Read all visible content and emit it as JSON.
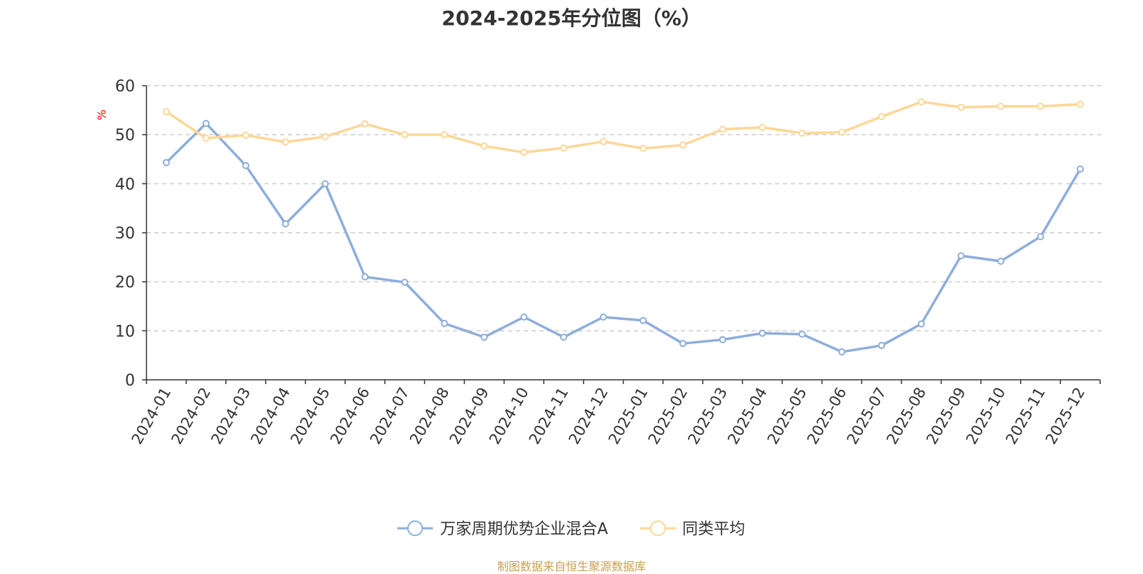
{
  "chart_data": {
    "type": "line",
    "title": "2024-2025年分位图（%）",
    "xlabel": "",
    "ylabel": "%",
    "ylim": [
      0,
      60
    ],
    "yticks": [
      0,
      10,
      20,
      30,
      40,
      50,
      60
    ],
    "grid": true,
    "legend_position": "bottom-center",
    "categories": [
      "2024-01",
      "2024-02",
      "2024-03",
      "2024-04",
      "2024-05",
      "2024-06",
      "2024-07",
      "2024-08",
      "2024-09",
      "2024-10",
      "2024-11",
      "2024-12",
      "2025-01",
      "2025-02",
      "2025-03",
      "2025-04",
      "2025-05",
      "2025-06",
      "2025-07",
      "2025-08",
      "2025-09",
      "2025-10",
      "2025-11",
      "2025-12"
    ],
    "series": [
      {
        "name": "万家周期优势企业混合A",
        "color": "#8eaedb",
        "values": [
          44.3,
          52.3,
          43.7,
          31.8,
          40.0,
          21.0,
          19.9,
          11.5,
          8.7,
          12.8,
          8.7,
          12.8,
          12.1,
          7.4,
          8.2,
          9.5,
          9.3,
          5.7,
          7.0,
          11.4,
          25.3,
          24.2,
          29.2,
          43.0
        ]
      },
      {
        "name": "同类平均",
        "color": "#fcd797",
        "values": [
          54.7,
          49.3,
          49.9,
          48.5,
          49.6,
          52.2,
          50.0,
          50.0,
          47.7,
          46.4,
          47.3,
          48.6,
          47.2,
          47.9,
          51.1,
          51.5,
          50.3,
          50.5,
          53.7,
          56.7,
          55.6,
          55.8,
          55.8,
          56.2
        ]
      }
    ],
    "ylabel_color": "#ff0000",
    "axis_color": "#333333",
    "grid_color": "#cccccc"
  },
  "source_note": "制图数据来自恒生聚源数据库",
  "source_color": "#c8a050"
}
